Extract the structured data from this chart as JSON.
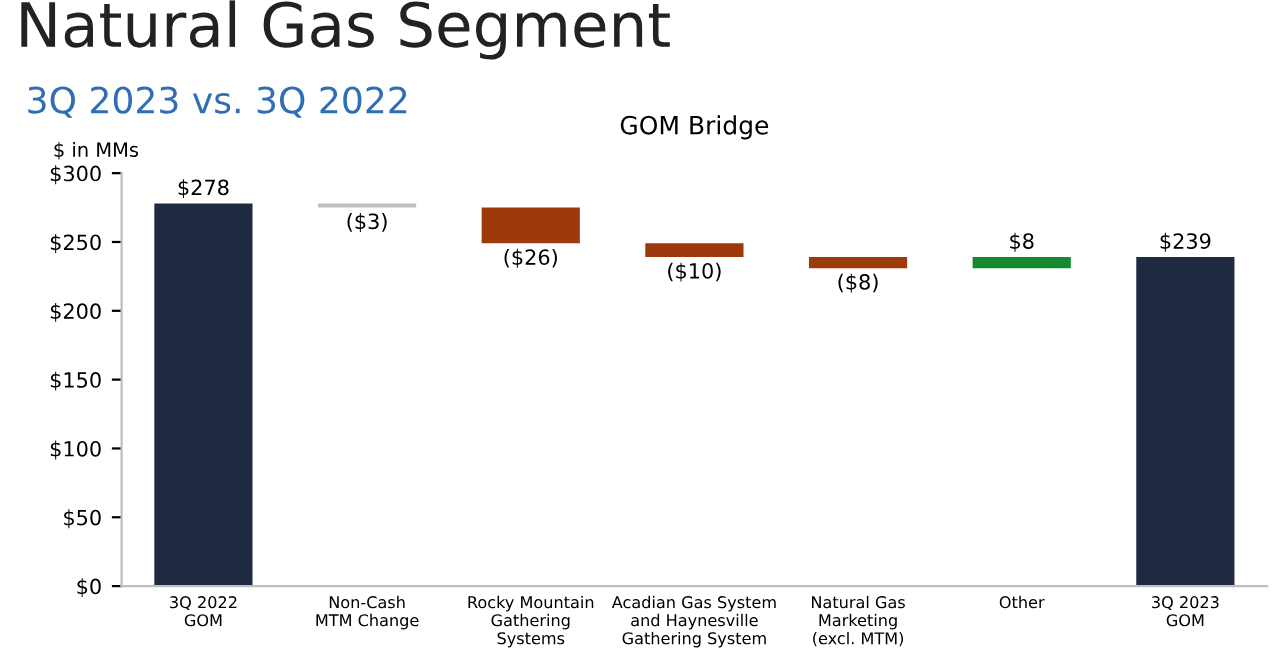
{
  "chart_data": {
    "type": "bar",
    "title": "GOM Bridge",
    "ylabel": "$ in MMs",
    "annotations": [
      "Natural Gas Segment",
      "3Q 2023 vs. 3Q 2022"
    ],
    "categories": [
      "3Q 2022\nGOM",
      "Non-Cash\nMTM Change",
      "Rocky Mountain\nGathering\nSystems",
      "Acadian Gas System\nand Haynesville\nGathering System",
      "Natural Gas\nMarketing\n(excl. MTM)",
      "Other",
      "3Q 2023\nGOM"
    ],
    "values": [
      278,
      -3,
      -26,
      -10,
      -8,
      8,
      239
    ],
    "base": [
      0,
      278,
      275,
      249,
      239,
      231,
      0
    ],
    "colors": [
      "#1f2940",
      "#bfbfbf",
      "#9c3a0b",
      "#9c3a0b",
      "#9c3a0b",
      "#138a2e",
      "#1f2940"
    ],
    "value_labels": [
      "$278",
      "($3)",
      "($26)",
      "($10)",
      "($8)",
      "$8",
      "$239"
    ],
    "ylim": [
      0,
      300
    ],
    "yticks": [
      {
        "value": 0,
        "label": "$0"
      },
      {
        "value": 50,
        "label": "$50"
      },
      {
        "value": 100,
        "label": "$100"
      },
      {
        "value": 150,
        "label": "$150"
      },
      {
        "value": 200,
        "label": "$200"
      },
      {
        "value": 250,
        "label": "$250"
      },
      {
        "value": 300,
        "label": "$300"
      }
    ],
    "grid": false,
    "legend": false
  }
}
